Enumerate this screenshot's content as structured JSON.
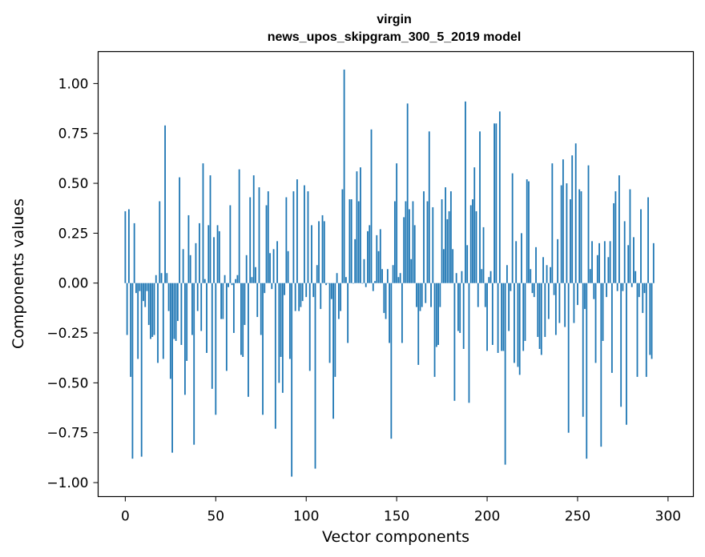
{
  "chart_data": {
    "type": "bar",
    "title": "virgin",
    "subtitle": "news_upos_skipgram_300_5_2019 model",
    "xlabel": "Vector components",
    "ylabel": "Components values",
    "xlim": [
      -15,
      314
    ],
    "ylim": [
      -1.07,
      1.16
    ],
    "xticks": [
      0,
      50,
      100,
      150,
      200,
      250,
      300
    ],
    "xtick_labels": [
      "0",
      "50",
      "100",
      "150",
      "200",
      "250",
      "300"
    ],
    "yticks": [
      -1.0,
      -0.75,
      -0.5,
      -0.25,
      0.0,
      0.25,
      0.5,
      0.75,
      1.0
    ],
    "ytick_labels": [
      "−1.00",
      "−0.75",
      "−0.50",
      "−0.25",
      "0.00",
      "0.25",
      "0.50",
      "0.75",
      "1.00"
    ],
    "grid": false,
    "bar_color": "#1f77b4",
    "values": [
      0.36,
      -0.26,
      0.37,
      -0.47,
      -0.88,
      0.3,
      -0.05,
      -0.38,
      -0.04,
      -0.87,
      -0.09,
      -0.12,
      -0.04,
      -0.21,
      -0.28,
      -0.27,
      -0.26,
      0.04,
      -0.4,
      0.41,
      0.05,
      -0.38,
      0.79,
      0.05,
      -0.14,
      -0.48,
      -0.85,
      -0.28,
      -0.29,
      -0.19,
      0.53,
      -0.31,
      0.17,
      -0.56,
      -0.39,
      0.34,
      0.14,
      -0.26,
      -0.81,
      0.2,
      -0.14,
      0.3,
      -0.24,
      0.6,
      0.02,
      -0.35,
      0.29,
      0.54,
      -0.53,
      0.23,
      -0.66,
      0.29,
      0.26,
      -0.18,
      -0.18,
      0.04,
      -0.44,
      -0.02,
      0.39,
      -0.01,
      -0.25,
      0.02,
      0.04,
      0.57,
      -0.36,
      -0.37,
      -0.21,
      0.14,
      -0.57,
      0.43,
      0.03,
      0.54,
      0.08,
      -0.17,
      0.48,
      -0.26,
      -0.66,
      -0.05,
      0.39,
      0.46,
      0.15,
      -0.03,
      0.17,
      -0.73,
      0.21,
      -0.5,
      -0.37,
      -0.55,
      -0.06,
      0.43,
      0.16,
      -0.38,
      -0.97,
      0.46,
      -0.14,
      0.52,
      -0.14,
      -0.12,
      -0.09,
      0.49,
      -0.07,
      0.46,
      -0.44,
      0.29,
      -0.07,
      -0.93,
      0.09,
      0.31,
      -0.13,
      0.34,
      0.31,
      -0.01,
      0.0,
      -0.4,
      -0.08,
      -0.68,
      -0.47,
      0.05,
      -0.18,
      -0.14,
      0.47,
      1.07,
      0.03,
      -0.3,
      0.42,
      0.42,
      0.0,
      0.22,
      0.56,
      0.41,
      0.58,
      0.0,
      0.12,
      -0.02,
      0.26,
      0.29,
      0.77,
      -0.04,
      0.01,
      0.24,
      0.16,
      0.27,
      0.07,
      -0.15,
      -0.18,
      0.07,
      -0.3,
      -0.78,
      0.09,
      0.41,
      0.6,
      0.03,
      0.05,
      -0.3,
      0.33,
      0.41,
      0.9,
      0.37,
      0.12,
      0.41,
      0.29,
      -0.12,
      -0.41,
      -0.14,
      -0.12,
      0.46,
      -0.1,
      0.41,
      0.76,
      -0.12,
      0.38,
      -0.47,
      -0.32,
      -0.31,
      -0.12,
      0.42,
      0.17,
      0.48,
      0.32,
      0.36,
      0.46,
      0.17,
      -0.59,
      0.05,
      -0.24,
      -0.25,
      0.06,
      -0.33,
      0.91,
      0.19,
      -0.6,
      0.39,
      0.42,
      0.58,
      0.36,
      -0.12,
      0.76,
      0.07,
      0.28,
      -0.12,
      -0.34,
      0.03,
      0.06,
      -0.31,
      0.8,
      0.8,
      -0.35,
      0.86,
      -0.34,
      -0.34,
      -0.91,
      0.09,
      -0.24,
      -0.04,
      0.55,
      -0.4,
      0.21,
      -0.42,
      -0.46,
      0.25,
      -0.34,
      -0.29,
      0.52,
      0.51,
      0.07,
      -0.05,
      -0.07,
      0.18,
      -0.27,
      -0.33,
      -0.36,
      0.13,
      -0.27,
      0.09,
      -0.18,
      0.08,
      0.6,
      -0.06,
      -0.26,
      0.22,
      -0.2,
      0.49,
      0.62,
      -0.22,
      0.5,
      -0.75,
      0.42,
      0.64,
      -0.2,
      0.7,
      -0.11,
      0.47,
      0.46,
      -0.67,
      -0.13,
      -0.88,
      0.59,
      0.07,
      0.21,
      -0.08,
      -0.4,
      0.14,
      0.2,
      -0.82,
      -0.29,
      0.21,
      -0.07,
      0.13,
      0.21,
      -0.45,
      0.4,
      0.46,
      -0.04,
      0.54,
      -0.62,
      -0.04,
      0.31,
      -0.71,
      0.19,
      0.47,
      -0.02,
      0.23,
      0.06,
      -0.47,
      -0.07,
      0.37,
      -0.15,
      -0.05,
      -0.47,
      0.43,
      -0.36,
      -0.38,
      0.2
    ]
  }
}
